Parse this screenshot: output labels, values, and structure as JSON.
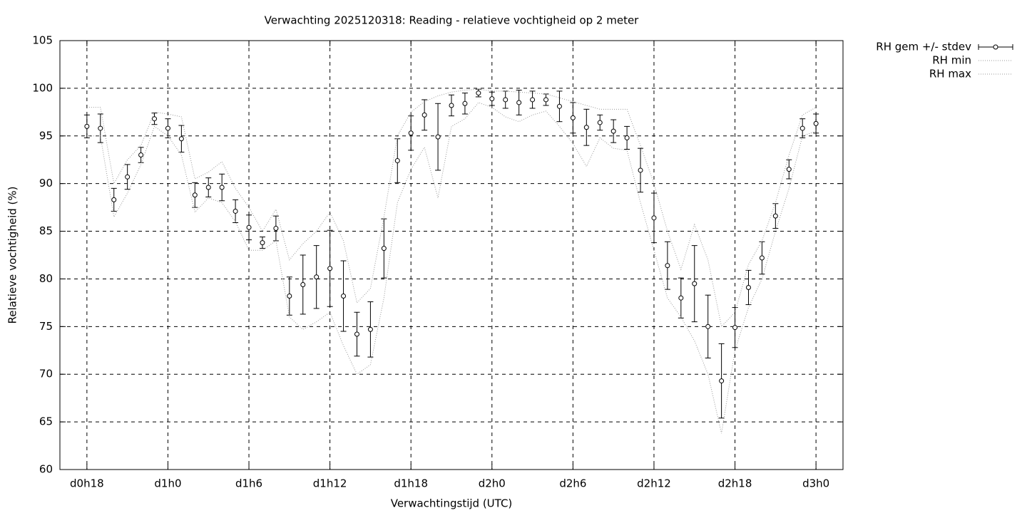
{
  "chart_data": {
    "type": "errorbar",
    "title": "Verwachting 2025120318: Reading - relatieve vochtigheid op 2 meter",
    "x_label": "Verwachtingstijd (UTC)",
    "y_label": "Relatieve vochtigheid (%)",
    "xlim": [
      16,
      74
    ],
    "ylim": [
      60,
      105
    ],
    "xticks": [
      {
        "value": 18,
        "label": "d0h18"
      },
      {
        "value": 24,
        "label": "d1h0"
      },
      {
        "value": 30,
        "label": "d1h6"
      },
      {
        "value": 36,
        "label": "d1h12"
      },
      {
        "value": 42,
        "label": "d1h18"
      },
      {
        "value": 48,
        "label": "d2h0"
      },
      {
        "value": 54,
        "label": "d2h6"
      },
      {
        "value": 60,
        "label": "d2h12"
      },
      {
        "value": 66,
        "label": "d2h18"
      },
      {
        "value": 72,
        "label": "d3h0"
      }
    ],
    "yticks": [
      60,
      65,
      70,
      75,
      80,
      85,
      90,
      95,
      100,
      105
    ],
    "grid": true,
    "legend": "outside-top-right",
    "x": [
      18,
      19,
      20,
      21,
      22,
      23,
      24,
      25,
      26,
      27,
      28,
      29,
      30,
      31,
      32,
      33,
      34,
      35,
      36,
      37,
      38,
      39,
      40,
      41,
      42,
      43,
      44,
      45,
      46,
      47,
      48,
      49,
      50,
      51,
      52,
      53,
      54,
      55,
      56,
      57,
      58,
      59,
      60,
      61,
      62,
      63,
      64,
      65,
      66,
      67,
      68,
      69,
      70,
      71,
      72
    ],
    "series": [
      {
        "name": "RH gem +/- stdev",
        "color": "#000000",
        "style": "errorbar",
        "values": [
          96.0,
          95.8,
          88.3,
          90.7,
          93.0,
          96.8,
          95.8,
          94.7,
          88.8,
          89.6,
          89.6,
          87.1,
          85.4,
          83.8,
          85.3,
          78.2,
          79.4,
          80.2,
          81.1,
          78.2,
          74.2,
          74.7,
          83.2,
          92.4,
          95.3,
          97.2,
          94.9,
          98.2,
          98.4,
          99.5,
          98.9,
          98.8,
          98.5,
          98.8,
          98.8,
          98.1,
          96.9,
          95.9,
          96.4,
          95.5,
          94.8,
          91.4,
          86.4,
          81.4,
          78.0,
          79.5,
          75.0,
          69.3,
          74.9,
          79.1,
          82.2,
          86.6,
          91.5,
          95.8,
          96.3
        ],
        "errors": [
          1.2,
          1.5,
          1.2,
          1.3,
          0.8,
          0.6,
          1.0,
          1.4,
          1.3,
          1.0,
          1.4,
          1.2,
          1.3,
          0.6,
          1.3,
          2.0,
          3.1,
          3.3,
          4.0,
          3.7,
          2.3,
          2.9,
          3.1,
          2.3,
          1.8,
          1.6,
          3.5,
          1.1,
          1.1,
          0.4,
          0.7,
          0.9,
          1.3,
          0.9,
          0.6,
          1.6,
          1.6,
          1.9,
          0.8,
          1.2,
          1.2,
          2.3,
          2.6,
          2.5,
          2.1,
          4.0,
          3.3,
          3.9,
          2.1,
          1.8,
          1.7,
          1.3,
          1.0,
          1.0,
          1.0
        ]
      },
      {
        "name": "RH min",
        "color": "#999999",
        "style": "dotted",
        "values": [
          95,
          95,
          86.5,
          89,
          92,
          96,
          95,
          93,
          87,
          88.5,
          88,
          86,
          83,
          83,
          84,
          76,
          74.7,
          75.5,
          76.5,
          73,
          70,
          71,
          78,
          88,
          91.5,
          93.8,
          88.5,
          96,
          96.8,
          98.5,
          98,
          97,
          96.5,
          97.2,
          97.6,
          96,
          94.2,
          91.8,
          94.8,
          93.7,
          93.5,
          88,
          83,
          78,
          76,
          73.5,
          70,
          63.8,
          72.5,
          77,
          80,
          85,
          89.5,
          95,
          95.5
        ]
      },
      {
        "name": "RH max",
        "color": "#999999",
        "style": "dotted",
        "values": [
          98,
          98,
          90,
          92.5,
          94,
          97.5,
          97.3,
          97,
          90.5,
          91.2,
          92.3,
          89.5,
          87.5,
          85,
          87.3,
          82,
          83.7,
          85,
          87,
          84,
          77.5,
          79,
          86.5,
          95,
          97.5,
          98.6,
          99.2,
          99.6,
          99.8,
          99.9,
          99.7,
          99.7,
          99.6,
          99.5,
          99.4,
          99.0,
          98.6,
          98.2,
          97.8,
          97.8,
          97.8,
          94,
          90,
          85,
          81,
          85.7,
          82,
          75,
          76.5,
          81.5,
          84,
          88,
          93,
          97.2,
          98
        ]
      }
    ]
  }
}
